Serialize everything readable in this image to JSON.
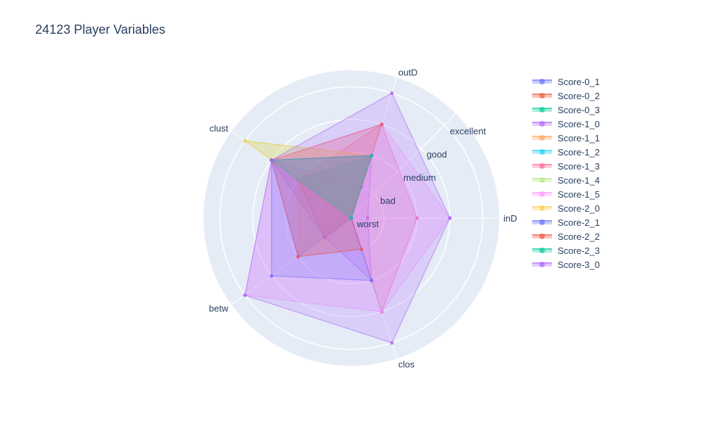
{
  "chart_data": {
    "type": "radar",
    "title": "24123 Player Variables",
    "axes": [
      "inD",
      "outD",
      "clust",
      "betw",
      "clos"
    ],
    "radial_ticks": [
      "worst",
      "bad",
      "medium",
      "good",
      "excellent"
    ],
    "radial_range": [
      0,
      4.5
    ],
    "grid": true,
    "legend_position": "right",
    "series": [
      {
        "name": "Score-0_1",
        "color": "#636efa",
        "values": [
          0,
          1,
          3,
          2,
          0
        ]
      },
      {
        "name": "Score-0_2",
        "color": "#ef553b",
        "values": [
          0,
          2,
          2,
          1,
          0
        ]
      },
      {
        "name": "Score-0_3",
        "color": "#00cc96",
        "values": [
          0,
          2,
          2,
          0,
          0
        ]
      },
      {
        "name": "Score-1_0",
        "color": "#ab63fa",
        "values": [
          0.5,
          2,
          3,
          1,
          2
        ]
      },
      {
        "name": "Score-1_1",
        "color": "#ffa15a",
        "values": [
          0,
          0,
          2,
          2,
          1
        ]
      },
      {
        "name": "Score-1_2",
        "color": "#19d3f3",
        "values": [
          0,
          2,
          2,
          0,
          3
        ]
      },
      {
        "name": "Score-1_3",
        "color": "#ff6692",
        "values": [
          2,
          3,
          2,
          0,
          3
        ]
      },
      {
        "name": "Score-1_4",
        "color": "#b6e880",
        "values": [
          0,
          2,
          4,
          0,
          0
        ]
      },
      {
        "name": "Score-1_5",
        "color": "#ff97ff",
        "values": [
          3,
          3,
          3,
          4,
          3
        ]
      },
      {
        "name": "Score-2_0",
        "color": "#fecb52",
        "values": [
          0,
          2,
          4,
          0,
          0
        ]
      },
      {
        "name": "Score-2_1",
        "color": "#636efa",
        "values": [
          0,
          2,
          3,
          3,
          2
        ]
      },
      {
        "name": "Score-2_2",
        "color": "#ef553b",
        "values": [
          0,
          3,
          3,
          2,
          1
        ]
      },
      {
        "name": "Score-2_3",
        "color": "#00cc96",
        "values": [
          0,
          2,
          3,
          0,
          0
        ]
      },
      {
        "name": "Score-3_0",
        "color": "#ab63fa",
        "values": [
          3,
          4,
          3,
          4,
          4
        ]
      }
    ]
  }
}
